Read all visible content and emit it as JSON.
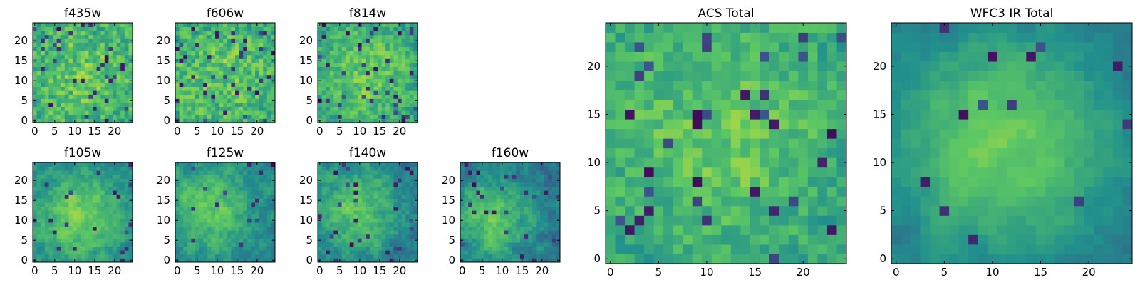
{
  "colors": {
    "colormap": "viridis-upper",
    "stops": [
      "#440154",
      "#3b528b",
      "#21908d",
      "#5dc863",
      "#fde725"
    ],
    "frame": "#000000",
    "text": "#000000",
    "background": "#ffffff"
  },
  "chart_data": [
    {
      "id": "f435w",
      "type": "heatmap",
      "title": "f435w",
      "grid_size": 25,
      "xlim": [
        -0.5,
        24.5
      ],
      "ylim": [
        -0.5,
        24.5
      ],
      "xticks": [
        0,
        5,
        10,
        15,
        20
      ],
      "yticks": [
        0,
        5,
        10,
        15,
        20
      ],
      "xtick_labels": [
        "0",
        "5",
        "10",
        "15",
        "20"
      ],
      "ytick_labels": [
        "0",
        "5",
        "10",
        "15",
        "20"
      ],
      "vrange": [
        0,
        1
      ],
      "seed": 101,
      "center": 0.67,
      "peak": 0.14,
      "noise": 0.17,
      "sigma": 9.5,
      "smooth": 0.1,
      "cx": 12.0,
      "cy": 12.0,
      "lowfrac": 0.06
    },
    {
      "id": "f606w",
      "type": "heatmap",
      "title": "f606w",
      "grid_size": 25,
      "xlim": [
        -0.5,
        24.5
      ],
      "ylim": [
        -0.5,
        24.5
      ],
      "xticks": [
        0,
        5,
        10,
        15,
        20
      ],
      "yticks": [
        0,
        5,
        10,
        15,
        20
      ],
      "xtick_labels": [
        "0",
        "5",
        "10",
        "15",
        "20"
      ],
      "ytick_labels": [
        "0",
        "5",
        "10",
        "15",
        "20"
      ],
      "vrange": [
        0,
        1
      ],
      "seed": 202,
      "center": 0.66,
      "peak": 0.14,
      "noise": 0.17,
      "sigma": 9.5,
      "smooth": 0.1,
      "cx": 12.0,
      "cy": 12.0,
      "lowfrac": 0.06
    },
    {
      "id": "f814w",
      "type": "heatmap",
      "title": "f814w",
      "grid_size": 25,
      "xlim": [
        -0.5,
        24.5
      ],
      "ylim": [
        -0.5,
        24.5
      ],
      "xticks": [
        0,
        5,
        10,
        15,
        20
      ],
      "yticks": [
        0,
        5,
        10,
        15,
        20
      ],
      "xtick_labels": [
        "0",
        "5",
        "10",
        "15",
        "20"
      ],
      "ytick_labels": [
        "0",
        "5",
        "10",
        "15",
        "20"
      ],
      "vrange": [
        0,
        1
      ],
      "seed": 303,
      "center": 0.65,
      "peak": 0.2,
      "noise": 0.16,
      "sigma": 8.5,
      "smooth": 0.25,
      "cx": 11.0,
      "cy": 12.0,
      "lowfrac": 0.06
    },
    {
      "id": "f105w",
      "type": "heatmap",
      "title": "f105w",
      "grid_size": 25,
      "xlim": [
        -0.5,
        24.5
      ],
      "ylim": [
        -0.5,
        24.5
      ],
      "xticks": [
        0,
        5,
        10,
        15,
        20
      ],
      "yticks": [
        0,
        5,
        10,
        15,
        20
      ],
      "xtick_labels": [
        "0",
        "5",
        "10",
        "15",
        "20"
      ],
      "ytick_labels": [
        "0",
        "5",
        "10",
        "15",
        "20"
      ],
      "vrange": [
        0,
        1
      ],
      "seed": 404,
      "center": 0.6,
      "peak": 0.32,
      "noise": 0.13,
      "sigma": 8.0,
      "smooth": 0.5,
      "cx": 11.0,
      "cy": 11.0,
      "lowfrac": 0.03
    },
    {
      "id": "f125w",
      "type": "heatmap",
      "title": "f125w",
      "grid_size": 25,
      "xlim": [
        -0.5,
        24.5
      ],
      "ylim": [
        -0.5,
        24.5
      ],
      "xticks": [
        0,
        5,
        10,
        15,
        20
      ],
      "yticks": [
        0,
        5,
        10,
        15,
        20
      ],
      "xtick_labels": [
        "0",
        "5",
        "10",
        "15",
        "20"
      ],
      "ytick_labels": [
        "0",
        "5",
        "10",
        "15",
        "20"
      ],
      "vrange": [
        0,
        1
      ],
      "seed": 505,
      "center": 0.57,
      "peak": 0.33,
      "noise": 0.13,
      "sigma": 8.0,
      "smooth": 0.5,
      "cx": 8.0,
      "cy": 13.0,
      "lowfrac": 0.03
    },
    {
      "id": "f140w",
      "type": "heatmap",
      "title": "f140w",
      "grid_size": 25,
      "xlim": [
        -0.5,
        24.5
      ],
      "ylim": [
        -0.5,
        24.5
      ],
      "xticks": [
        0,
        5,
        10,
        15,
        20
      ],
      "yticks": [
        0,
        5,
        10,
        15,
        20
      ],
      "xtick_labels": [
        "0",
        "5",
        "10",
        "15",
        "20"
      ],
      "ytick_labels": [
        "0",
        "5",
        "10",
        "15",
        "20"
      ],
      "vrange": [
        0,
        1
      ],
      "seed": 606,
      "center": 0.55,
      "peak": 0.33,
      "noise": 0.14,
      "sigma": 8.0,
      "smooth": 0.45,
      "cx": 9.0,
      "cy": 13.0,
      "lowfrac": 0.04
    },
    {
      "id": "f160w",
      "type": "heatmap",
      "title": "f160w",
      "grid_size": 25,
      "xlim": [
        -0.5,
        24.5
      ],
      "ylim": [
        -0.5,
        24.5
      ],
      "xticks": [
        0,
        5,
        10,
        15,
        20
      ],
      "yticks": [
        0,
        5,
        10,
        15,
        20
      ],
      "xtick_labels": [
        "0",
        "5",
        "10",
        "15",
        "20"
      ],
      "ytick_labels": [
        "0",
        "5",
        "10",
        "15",
        "20"
      ],
      "vrange": [
        0,
        1
      ],
      "seed": 707,
      "center": 0.53,
      "peak": 0.38,
      "noise": 0.14,
      "sigma": 8.0,
      "smooth": 0.5,
      "cx": 8.0,
      "cy": 11.0,
      "lowfrac": 0.04
    },
    {
      "id": "acs-total",
      "type": "heatmap",
      "title": "ACS Total",
      "grid_size": 25,
      "xlim": [
        -0.5,
        24.5
      ],
      "ylim": [
        -0.5,
        24.5
      ],
      "xticks": [
        0,
        5,
        10,
        15,
        20
      ],
      "yticks": [
        0,
        5,
        10,
        15,
        20
      ],
      "xtick_labels": [
        "0",
        "5",
        "10",
        "15",
        "20"
      ],
      "ytick_labels": [
        "0",
        "5",
        "10",
        "15",
        "20"
      ],
      "vrange": [
        0,
        1
      ],
      "seed": 808,
      "center": 0.65,
      "peak": 0.18,
      "noise": 0.14,
      "sigma": 9.0,
      "smooth": 0.25,
      "cx": 11.0,
      "cy": 13.0,
      "lowfrac": 0.05
    },
    {
      "id": "wfc3-ir-total",
      "type": "heatmap",
      "title": "WFC3 IR Total",
      "grid_size": 25,
      "xlim": [
        -0.5,
        24.5
      ],
      "ylim": [
        -0.5,
        24.5
      ],
      "xticks": [
        0,
        5,
        10,
        15,
        20
      ],
      "yticks": [
        0,
        5,
        10,
        15,
        20
      ],
      "xtick_labels": [
        "0",
        "5",
        "10",
        "15",
        "20"
      ],
      "ytick_labels": [
        "0",
        "5",
        "10",
        "15",
        "20"
      ],
      "vrange": [
        0,
        1
      ],
      "seed": 909,
      "center": 0.55,
      "peak": 0.42,
      "noise": 0.08,
      "sigma": 8.5,
      "smooth": 0.6,
      "cx": 11.0,
      "cy": 12.0,
      "lowfrac": 0.02
    }
  ]
}
